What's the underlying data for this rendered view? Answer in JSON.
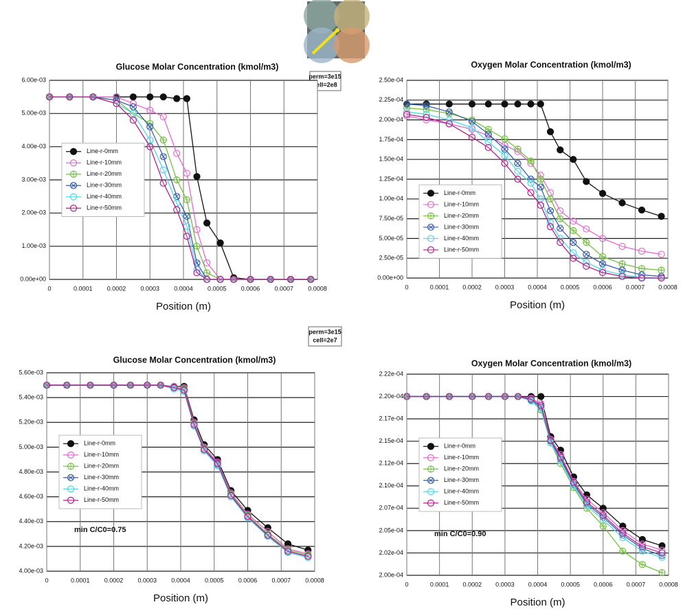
{
  "case_labels": [
    [
      "perm=3e15",
      "cell=2e8"
    ],
    [
      "perm=3e15",
      "cell=2e7"
    ]
  ],
  "chart_data": [
    {
      "type": "line",
      "title": "Glucose Molar Concentration  (kmol/m3)",
      "xlabel": "Position (m)",
      "legend": "center left",
      "grid": true,
      "xlim": [
        0,
        0.0008
      ],
      "xticks": [
        0,
        0.0001,
        0.0002,
        0.0003,
        0.0004,
        0.0005,
        0.0006,
        0.0007,
        0.0008
      ],
      "ylim": [
        0,
        0.006
      ],
      "yticks": [
        {
          "value": 0,
          "label": "0.00e+00"
        },
        {
          "value": 0.001,
          "label": "1.00e-03"
        },
        {
          "value": 0.002,
          "label": "2.00e-03"
        },
        {
          "value": 0.003,
          "label": "3.00e-03"
        },
        {
          "value": 0.004,
          "label": "4.00e-03"
        },
        {
          "value": 0.005,
          "label": "5.00e-03"
        },
        {
          "value": 0.006,
          "label": "6.00e-03"
        }
      ],
      "x": [
        0,
        6e-05,
        0.00013,
        0.0002,
        0.00025,
        0.0003,
        0.00034,
        0.00038,
        0.00041,
        0.00044,
        0.00047,
        0.00051,
        0.00055,
        0.0006,
        0.00066,
        0.00072,
        0.00078
      ],
      "series": [
        {
          "name": "Line-r-0mm",
          "color": "#111111",
          "marker": "filled",
          "values": [
            0.0055,
            0.0055,
            0.0055,
            0.0055,
            0.0055,
            0.0055,
            0.0055,
            0.00545,
            0.00545,
            0.0031,
            0.0017,
            0.0011,
            5e-05,
            0,
            0,
            0,
            0
          ]
        },
        {
          "name": "Line-r-10mm",
          "color": "#e06ad0",
          "marker": "open",
          "values": [
            0.0055,
            0.0055,
            0.0055,
            0.0055,
            0.0053,
            0.0051,
            0.0049,
            0.0038,
            0.0032,
            0.0015,
            0.0005,
            0,
            0,
            0,
            0,
            0,
            0
          ]
        },
        {
          "name": "Line-r-20mm",
          "color": "#77c043",
          "marker": "plus",
          "values": [
            0.0055,
            0.0055,
            0.0055,
            0.0054,
            0.005,
            0.0047,
            0.0042,
            0.003,
            0.0024,
            0.001,
            0.0002,
            0,
            0,
            0,
            0,
            0,
            0
          ]
        },
        {
          "name": "Line-r-30mm",
          "color": "#3a5ea8",
          "marker": "cross",
          "values": [
            0.0055,
            0.0055,
            0.0055,
            0.0054,
            0.0052,
            0.0046,
            0.0037,
            0.0025,
            0.0019,
            0.0005,
            0,
            0,
            0,
            0,
            0,
            0,
            0
          ]
        },
        {
          "name": "Line-r-40mm",
          "color": "#4fd6e8",
          "marker": "open",
          "values": [
            0.0055,
            0.0055,
            0.0055,
            0.0053,
            0.005,
            0.0042,
            0.0033,
            0.0023,
            0.0016,
            0.0003,
            0,
            0,
            0,
            0,
            0,
            0,
            0
          ]
        },
        {
          "name": "Line-r-50mm",
          "color": "#b0208a",
          "marker": "open",
          "values": [
            0.0055,
            0.0055,
            0.0055,
            0.0053,
            0.0048,
            0.004,
            0.0029,
            0.0021,
            0.0013,
            0.0002,
            0,
            0,
            0,
            0,
            0,
            0,
            0
          ]
        }
      ]
    },
    {
      "type": "line",
      "title": "Oxygen Molar Concentration  (kmol/m3)",
      "xlabel": "Position (m)",
      "legend": "lower left",
      "grid": true,
      "xlim": [
        0,
        0.0008
      ],
      "xticks": [
        0,
        0.0001,
        0.0002,
        0.0003,
        0.0004,
        0.0005,
        0.0006,
        0.0007,
        0.0008
      ],
      "ylim": [
        0,
        0.00025
      ],
      "yticks": [
        {
          "value": 0,
          "label": "0.00e+00"
        },
        {
          "value": 2.5e-05,
          "label": "2.50e-05"
        },
        {
          "value": 5e-05,
          "label": "5.00e-05"
        },
        {
          "value": 7.5e-05,
          "label": "7.50e-05"
        },
        {
          "value": 0.0001,
          "label": "1.00e-04"
        },
        {
          "value": 0.000125,
          "label": "1.25e-04"
        },
        {
          "value": 0.00015,
          "label": "1.50e-04"
        },
        {
          "value": 0.000175,
          "label": "1.75e-04"
        },
        {
          "value": 0.0002,
          "label": "2.00e-04"
        },
        {
          "value": 0.000225,
          "label": "2.25e-04"
        },
        {
          "value": 0.00025,
          "label": "2.50e-04"
        }
      ],
      "x": [
        0,
        6e-05,
        0.00013,
        0.0002,
        0.00025,
        0.0003,
        0.00034,
        0.00038,
        0.00041,
        0.00044,
        0.00047,
        0.00051,
        0.00055,
        0.0006,
        0.00066,
        0.00072,
        0.00078
      ],
      "series": [
        {
          "name": "Line-r-0mm",
          "color": "#111111",
          "marker": "filled",
          "values": [
            0.00022,
            0.00022,
            0.00022,
            0.00022,
            0.00022,
            0.00022,
            0.00022,
            0.00022,
            0.00022,
            0.000185,
            0.000162,
            0.00015,
            0.000122,
            0.000107,
            9.5e-05,
            8.6e-05,
            7.8e-05
          ]
        },
        {
          "name": "Line-r-10mm",
          "color": "#e06ad0",
          "marker": "open",
          "values": [
            0.000205,
            0.0002,
            0.000195,
            0.000188,
            0.00018,
            0.000168,
            0.00016,
            0.000145,
            0.00013,
            0.000108,
            8.5e-05,
            7.2e-05,
            6.2e-05,
            5e-05,
            4e-05,
            3.4e-05,
            3e-05
          ]
        },
        {
          "name": "Line-r-20mm",
          "color": "#77c043",
          "marker": "plus",
          "values": [
            0.000215,
            0.000213,
            0.000208,
            0.0002,
            0.000188,
            0.000176,
            0.000163,
            0.000148,
            0.000125,
            0.0001,
            7.5e-05,
            6e-05,
            4.5e-05,
            2.7e-05,
            1.8e-05,
            1.2e-05,
            1e-05
          ]
        },
        {
          "name": "Line-r-30mm",
          "color": "#3a5ea8",
          "marker": "cross",
          "values": [
            0.00022,
            0.000218,
            0.00021,
            0.000198,
            0.000182,
            0.000163,
            0.000145,
            0.000125,
            0.000115,
            8.5e-05,
            6.3e-05,
            4.5e-05,
            3e-05,
            1.8e-05,
            1e-05,
            4e-06,
            2e-06
          ]
        },
        {
          "name": "Line-r-40mm",
          "color": "#4fd6e8",
          "marker": "open",
          "values": [
            0.00021,
            0.000207,
            0.0002,
            0.00019,
            0.000172,
            0.000155,
            0.000135,
            0.00012,
            0.0001,
            7e-05,
            5e-05,
            3.2e-05,
            2e-05,
            1e-05,
            4e-06,
            1e-06,
            0
          ]
        },
        {
          "name": "Line-r-50mm",
          "color": "#b0208a",
          "marker": "open",
          "values": [
            0.000207,
            0.000203,
            0.000195,
            0.000178,
            0.000165,
            0.000145,
            0.000125,
            0.000108,
            9.2e-05,
            6.5e-05,
            4.5e-05,
            2.5e-05,
            1.5e-05,
            7e-06,
            2e-06,
            0,
            0
          ]
        }
      ]
    },
    {
      "type": "line",
      "title": "Glucose Molar Concentration  (kmol/m3)",
      "xlabel": "Position (m)",
      "legend": "center left",
      "grid": true,
      "annotation": "min C/C0=0.75",
      "xlim": [
        0,
        0.0008
      ],
      "xticks": [
        0,
        0.0001,
        0.0002,
        0.0003,
        0.0004,
        0.0005,
        0.0006,
        0.0007,
        0.0008
      ],
      "ylim": [
        0.004,
        0.0056
      ],
      "yticks": [
        {
          "value": 0.004,
          "label": "4.00e-03"
        },
        {
          "value": 0.0042,
          "label": "4.20e-03"
        },
        {
          "value": 0.0044,
          "label": "4.40e-03"
        },
        {
          "value": 0.0046,
          "label": "4.60e-03"
        },
        {
          "value": 0.0048,
          "label": "4.80e-03"
        },
        {
          "value": 0.005,
          "label": "5.00e-03"
        },
        {
          "value": 0.0052,
          "label": "5.20e-03"
        },
        {
          "value": 0.0054,
          "label": "5.40e-03"
        },
        {
          "value": 0.0056,
          "label": "5.60e-03"
        }
      ],
      "x": [
        0,
        6e-05,
        0.00013,
        0.0002,
        0.00025,
        0.0003,
        0.00034,
        0.00038,
        0.00041,
        0.00044,
        0.00047,
        0.00051,
        0.00055,
        0.0006,
        0.00066,
        0.00072,
        0.00078
      ],
      "series": [
        {
          "name": "Line-r-0mm",
          "color": "#111111",
          "marker": "filled",
          "values": [
            0.0055,
            0.0055,
            0.0055,
            0.0055,
            0.0055,
            0.0055,
            0.0055,
            0.00549,
            0.00549,
            0.00522,
            0.00502,
            0.0049,
            0.00465,
            0.00449,
            0.00435,
            0.00422,
            0.00417
          ]
        },
        {
          "name": "Line-r-10mm",
          "color": "#e06ad0",
          "marker": "open",
          "values": [
            0.0055,
            0.0055,
            0.0055,
            0.0055,
            0.0055,
            0.0055,
            0.0055,
            0.00549,
            0.00548,
            0.0052,
            0.005,
            0.00488,
            0.00463,
            0.00446,
            0.00432,
            0.00418,
            0.00414
          ]
        },
        {
          "name": "Line-r-20mm",
          "color": "#77c043",
          "marker": "plus",
          "values": [
            0.0055,
            0.0055,
            0.0055,
            0.0055,
            0.0055,
            0.0055,
            0.0055,
            0.00548,
            0.00547,
            0.00519,
            0.00499,
            0.00487,
            0.00462,
            0.00445,
            0.0043,
            0.00417,
            0.00413
          ]
        },
        {
          "name": "Line-r-30mm",
          "color": "#3a5ea8",
          "marker": "cross",
          "values": [
            0.0055,
            0.0055,
            0.0055,
            0.0055,
            0.0055,
            0.0055,
            0.0055,
            0.00548,
            0.00546,
            0.00518,
            0.00498,
            0.00486,
            0.00461,
            0.00444,
            0.00429,
            0.00416,
            0.00412
          ]
        },
        {
          "name": "Line-r-40mm",
          "color": "#4fd6e8",
          "marker": "open",
          "values": [
            0.0055,
            0.0055,
            0.0055,
            0.0055,
            0.0055,
            0.0055,
            0.0055,
            0.00547,
            0.00545,
            0.00517,
            0.00497,
            0.00485,
            0.0046,
            0.00443,
            0.00428,
            0.00415,
            0.00411
          ]
        },
        {
          "name": "Line-r-50mm",
          "color": "#b0208a",
          "marker": "open",
          "values": [
            0.0055,
            0.0055,
            0.0055,
            0.0055,
            0.0055,
            0.0055,
            0.0055,
            0.00548,
            0.00546,
            0.00518,
            0.00498,
            0.00487,
            0.00461,
            0.00444,
            0.00429,
            0.00416,
            0.00412
          ]
        }
      ]
    },
    {
      "type": "line",
      "title": "Oxygen Molar Concentration  (kmol/m3)",
      "xlabel": "Position (m)",
      "legend": "center left",
      "grid": true,
      "annotation": "min C/C0=0.90",
      "xlim": [
        0,
        0.0008
      ],
      "xticks": [
        0,
        0.0001,
        0.0002,
        0.0003,
        0.0004,
        0.0005,
        0.0006,
        0.0007,
        0.0008
      ],
      "ylim": [
        0.0002,
        0.0002225
      ],
      "yticks": [
        {
          "value": 0.0002,
          "label": "2.00e-04"
        },
        {
          "value": 0.0002025,
          "label": "2.02e-04"
        },
        {
          "value": 0.000205,
          "label": "2.05e-04"
        },
        {
          "value": 0.0002075,
          "label": "2.07e-04"
        },
        {
          "value": 0.00021,
          "label": "2.10e-04"
        },
        {
          "value": 0.0002125,
          "label": "2.12e-04"
        },
        {
          "value": 0.000215,
          "label": "2.15e-04"
        },
        {
          "value": 0.0002175,
          "label": "2.17e-04"
        },
        {
          "value": 0.00022,
          "label": "2.20e-04"
        },
        {
          "value": 0.0002225,
          "label": "2.22e-04"
        }
      ],
      "x": [
        0,
        6e-05,
        0.00013,
        0.0002,
        0.00025,
        0.0003,
        0.00034,
        0.00038,
        0.00041,
        0.00044,
        0.00047,
        0.00051,
        0.00055,
        0.0006,
        0.00066,
        0.00072,
        0.00078
      ],
      "series": [
        {
          "name": "Line-r-0mm",
          "color": "#111111",
          "marker": "filled",
          "values": [
            0.00022,
            0.00022,
            0.00022,
            0.00022,
            0.00022,
            0.00022,
            0.00022,
            0.00022,
            0.00022,
            0.0002155,
            0.000214,
            0.000211,
            0.000209,
            0.0002075,
            0.0002055,
            0.000204,
            0.0002033
          ]
        },
        {
          "name": "Line-r-10mm",
          "color": "#e06ad0",
          "marker": "open",
          "values": [
            0.00022,
            0.00022,
            0.00022,
            0.00022,
            0.00022,
            0.00022,
            0.00022,
            0.0002198,
            0.0002192,
            0.0002152,
            0.0002135,
            0.0002105,
            0.0002085,
            0.000207,
            0.000205,
            0.0002035,
            0.0002028
          ]
        },
        {
          "name": "Line-r-20mm",
          "color": "#77c043",
          "marker": "plus",
          "values": [
            0.00022,
            0.00022,
            0.00022,
            0.00022,
            0.00022,
            0.00022,
            0.00022,
            0.0002195,
            0.0002185,
            0.0002148,
            0.0002125,
            0.0002098,
            0.0002075,
            0.0002055,
            0.0002027,
            0.0002012,
            0.0002003
          ]
        },
        {
          "name": "Line-r-30mm",
          "color": "#3a5ea8",
          "marker": "cross",
          "values": [
            0.00022,
            0.00022,
            0.00022,
            0.00022,
            0.00022,
            0.00022,
            0.00022,
            0.0002196,
            0.0002188,
            0.000215,
            0.000213,
            0.0002102,
            0.000208,
            0.0002065,
            0.0002045,
            0.000203,
            0.0002022
          ]
        },
        {
          "name": "Line-r-40mm",
          "color": "#4fd6e8",
          "marker": "open",
          "values": [
            0.00022,
            0.00022,
            0.00022,
            0.00022,
            0.00022,
            0.00022,
            0.00022,
            0.0002195,
            0.0002186,
            0.0002148,
            0.0002128,
            0.00021,
            0.0002078,
            0.0002062,
            0.0002042,
            0.0002027,
            0.000202
          ]
        },
        {
          "name": "Line-r-50mm",
          "color": "#b0208a",
          "marker": "open",
          "values": [
            0.00022,
            0.00022,
            0.00022,
            0.00022,
            0.00022,
            0.00022,
            0.00022,
            0.0002197,
            0.000219,
            0.0002151,
            0.0002132,
            0.0002104,
            0.0002082,
            0.0002067,
            0.0002047,
            0.0002032,
            0.0002025
          ]
        }
      ]
    }
  ]
}
